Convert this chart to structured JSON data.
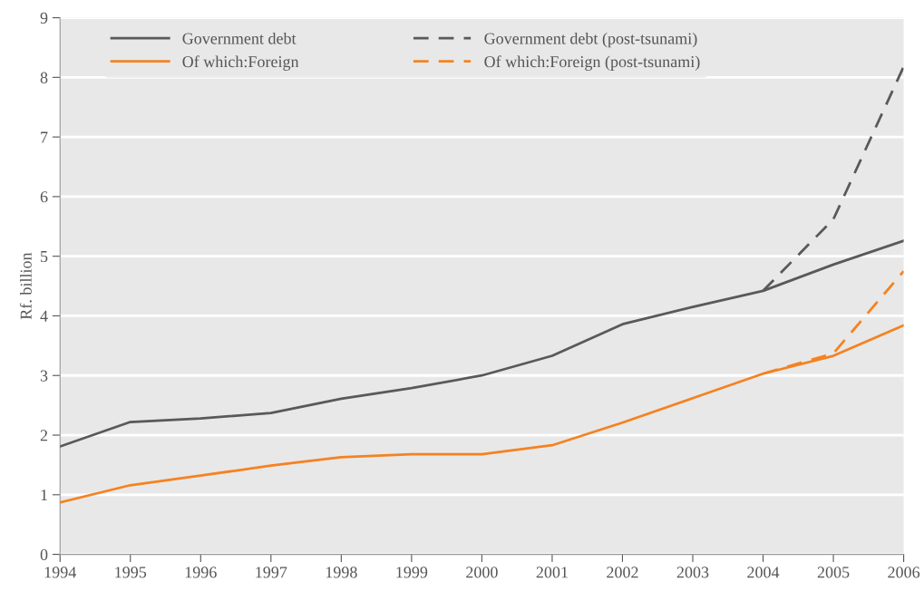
{
  "chart_data": {
    "type": "line",
    "ylabel": "Rf. billion",
    "x": [
      1994,
      1995,
      1996,
      1997,
      1998,
      1999,
      2000,
      2001,
      2002,
      2003,
      2004,
      2005,
      2006
    ],
    "series": [
      {
        "name": "Government debt",
        "color": "#595959",
        "line_style": "solid",
        "values": [
          1.81,
          2.22,
          2.28,
          2.37,
          2.61,
          2.79,
          3.0,
          3.33,
          3.86,
          4.15,
          4.42,
          4.86,
          5.26
        ]
      },
      {
        "name": "Government debt (post-tsunami)",
        "color": "#595959",
        "line_style": "dashed",
        "x": [
          2004,
          2005,
          2006
        ],
        "values": [
          4.42,
          5.62,
          8.18
        ]
      },
      {
        "name": "Of which:Foreign",
        "color": "#f58220",
        "line_style": "solid",
        "values": [
          0.87,
          1.16,
          1.32,
          1.49,
          1.63,
          1.68,
          1.68,
          1.83,
          2.21,
          2.62,
          3.03,
          3.33,
          3.84
        ]
      },
      {
        "name": "Of which:Foreign (post-tsunami)",
        "color": "#f58220",
        "line_style": "dashed",
        "x": [
          2004,
          2005,
          2006
        ],
        "values": [
          3.03,
          3.37,
          4.75
        ]
      }
    ],
    "xlim": [
      1994,
      2006
    ],
    "xticks": [
      1994,
      1995,
      1996,
      1997,
      1998,
      1999,
      2000,
      2001,
      2002,
      2003,
      2004,
      2005,
      2006
    ],
    "ylim": [
      0,
      9
    ],
    "yticks": [
      0,
      1,
      2,
      3,
      4,
      5,
      6,
      7,
      8,
      9
    ],
    "grid": "y",
    "legend": "top",
    "marker": "none"
  }
}
